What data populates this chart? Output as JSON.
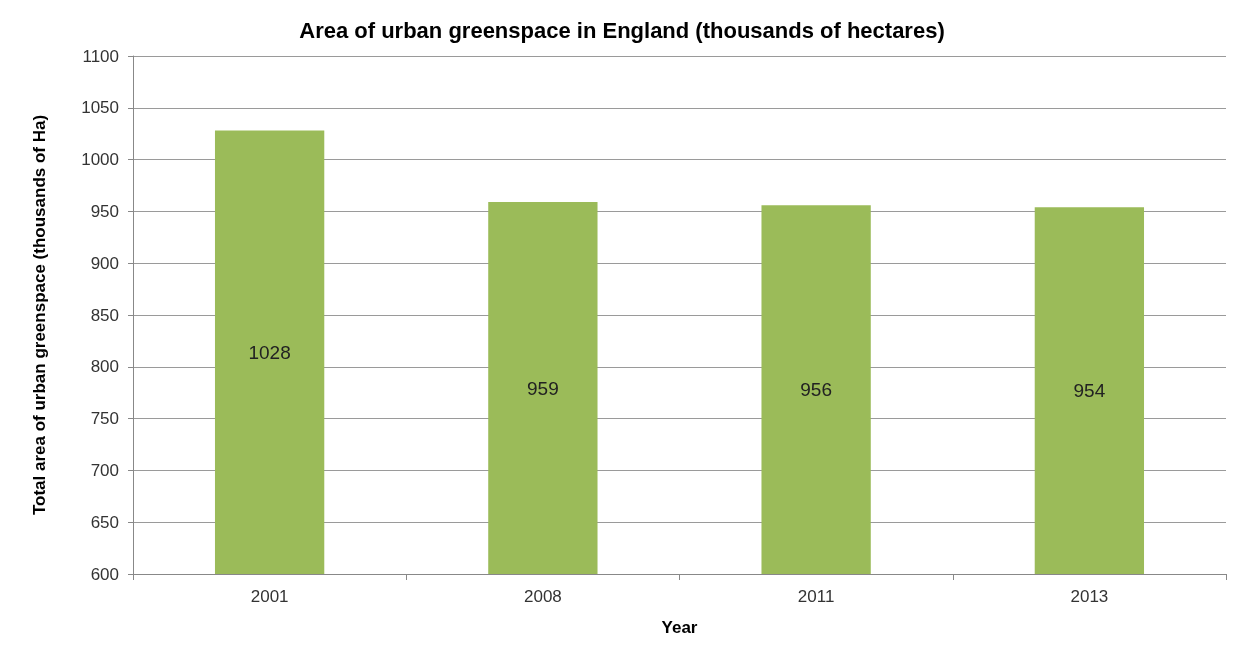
{
  "chart_data": {
    "type": "bar",
    "title": "Area of urban greenspace in England (thousands of hectares)",
    "xlabel": "Year",
    "ylabel": "Total area of urban greenspace (thousands of Ha)",
    "categories": [
      "2001",
      "2008",
      "2011",
      "2013"
    ],
    "values": [
      1028,
      959,
      956,
      954
    ],
    "color": "#9bbb59",
    "ylim": [
      600,
      1100
    ],
    "yticks": [
      600,
      650,
      700,
      750,
      800,
      850,
      900,
      950,
      1000,
      1050,
      1100
    ],
    "grid": "y",
    "data_labels": true
  }
}
